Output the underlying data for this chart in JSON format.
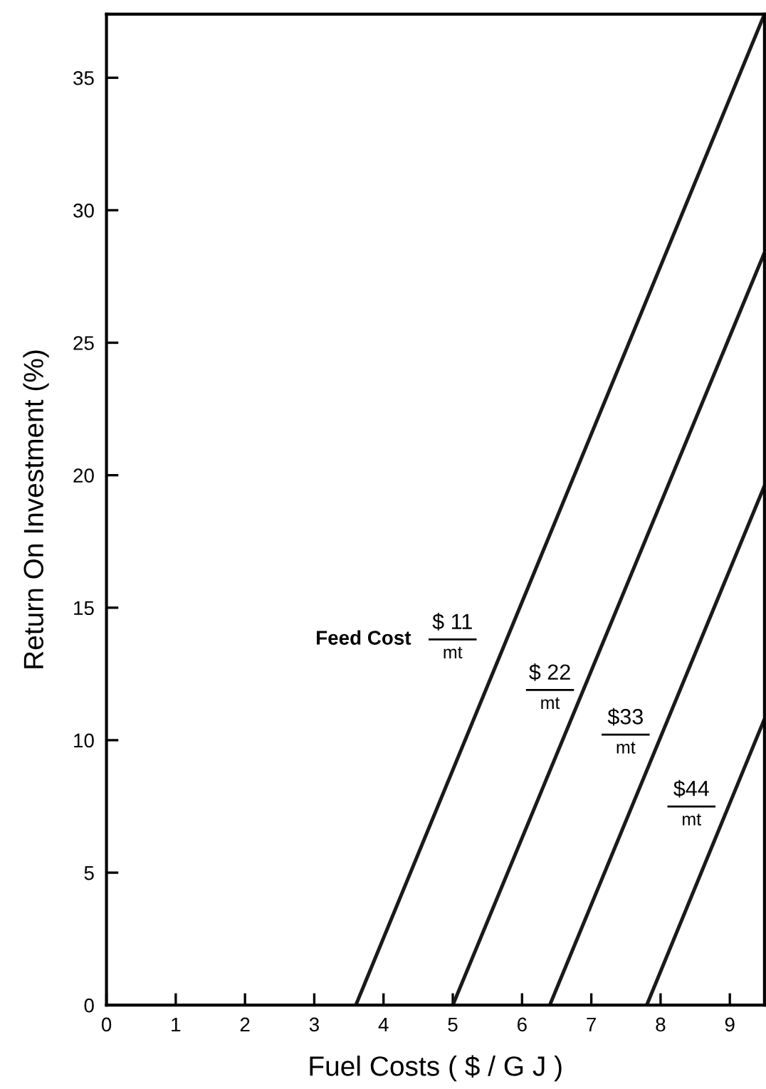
{
  "chart_data": {
    "type": "line",
    "xlabel": "Fuel Costs ( $ / G J )",
    "ylabel": "Return On Investment (%)",
    "xlim": [
      0,
      9.5
    ],
    "ylim": [
      0,
      37.4
    ],
    "xticks": [
      0,
      1,
      2,
      3,
      4,
      5,
      6,
      7,
      8,
      9
    ],
    "yticks": [
      0,
      5,
      10,
      15,
      20,
      25,
      30,
      35
    ],
    "grid": false,
    "legend": false,
    "series": [
      {
        "color": "#1a1a1a",
        "x": [
          3.6,
          9.5
        ],
        "values": [
          0,
          37.4
        ]
      },
      {
        "color": "#1a1a1a",
        "x": [
          5.0,
          9.5
        ],
        "values": [
          0,
          28.4
        ]
      },
      {
        "color": "#1a1a1a",
        "x": [
          6.4,
          9.5
        ],
        "values": [
          0,
          19.6
        ]
      },
      {
        "color": "#1a1a1a",
        "x": [
          7.8,
          9.5
        ],
        "values": [
          0,
          10.8
        ]
      }
    ],
    "annotations": [
      "Feed Cost",
      "$ 11",
      "mt",
      "$ 22",
      "mt",
      "$33",
      "mt",
      "$44",
      "mt"
    ]
  }
}
